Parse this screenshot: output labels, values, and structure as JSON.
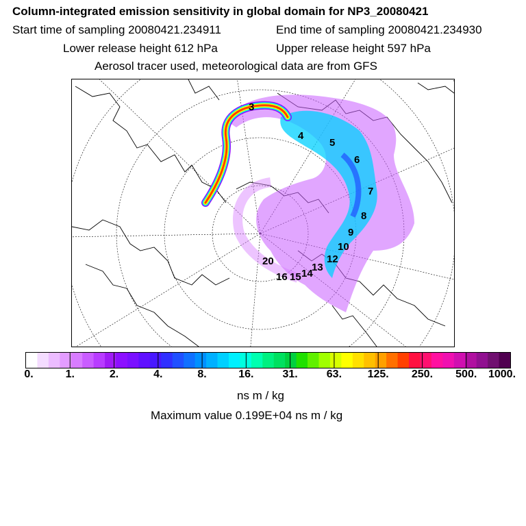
{
  "header": {
    "title": "Column-integrated emission sensitivity in global domain for NP3_20080421",
    "start": "Start time of sampling 20080421.234911",
    "end": "End time of sampling 20080421.234930",
    "lower": "Lower release height  612 hPa",
    "upper": "Upper release height  597 hPa",
    "aerosol": "Aerosol tracer used, meteorological data are from GFS"
  },
  "map": {
    "labels": [
      "3",
      "4",
      "5",
      "6",
      "7",
      "8",
      "9",
      "10",
      "12",
      "13",
      "14",
      "15",
      "16",
      "20"
    ]
  },
  "colorbar": {
    "colors": [
      "#ffffff",
      "#f4dcff",
      "#ecbcff",
      "#e39cff",
      "#d87cff",
      "#c95cff",
      "#b83cff",
      "#a01cf5",
      "#8c10ff",
      "#7a10ff",
      "#6010ff",
      "#4818ff",
      "#3030ff",
      "#2050ff",
      "#1070ff",
      "#0090ff",
      "#00b0ff",
      "#00d0ff",
      "#00f0ff",
      "#00ffe0",
      "#00ffb0",
      "#00f080",
      "#00e060",
      "#00d040",
      "#20e000",
      "#60f000",
      "#a0ff00",
      "#d8ff00",
      "#ffff00",
      "#ffe000",
      "#ffc000",
      "#ffa000",
      "#ff7000",
      "#ff4000",
      "#ff1040",
      "#ff1070",
      "#ff10a0",
      "#f010b0",
      "#d010b0",
      "#b010a0",
      "#901090",
      "#701070",
      "#500050"
    ],
    "ticks": [
      "0.",
      "1.",
      "2.",
      "4.",
      "8.",
      "16.",
      "31.",
      "63.",
      "125.",
      "250.",
      "500.",
      "1000."
    ],
    "units": "ns m / kg",
    "max_value": "Maximum value  0.199E+04 ns m / kg"
  }
}
